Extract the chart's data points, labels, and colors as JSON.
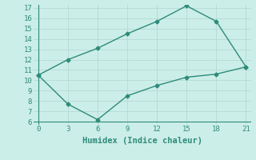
{
  "xlabel": "Humidex (Indice chaleur)",
  "x": [
    0,
    3,
    6,
    9,
    12,
    15,
    18,
    21
  ],
  "upper_y": [
    10.5,
    12.0,
    13.1,
    14.5,
    15.7,
    17.2,
    15.7,
    11.3
  ],
  "lower_y": [
    10.5,
    7.7,
    6.2,
    8.5,
    9.5,
    10.3,
    10.6,
    11.3
  ],
  "line_color": "#2e8b7a",
  "bg_color": "#cceee8",
  "grid_color": "#b8ddd6",
  "ylim": [
    5.7,
    17.3
  ],
  "xlim": [
    -0.5,
    21.5
  ],
  "yticks": [
    6,
    7,
    8,
    9,
    10,
    11,
    12,
    13,
    14,
    15,
    16,
    17
  ],
  "xticks": [
    0,
    3,
    6,
    9,
    12,
    15,
    18,
    21
  ],
  "tick_fontsize": 6.5,
  "xlabel_fontsize": 7.5,
  "marker": "D",
  "marker_size": 2.5,
  "linewidth": 1.0
}
